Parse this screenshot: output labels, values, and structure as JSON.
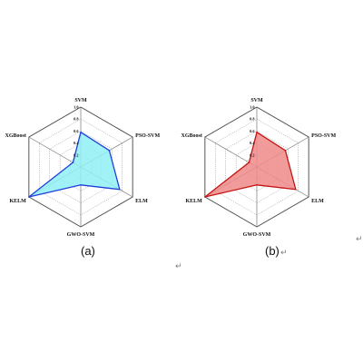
{
  "chart_data": [
    {
      "type": "radar",
      "caption": "(a)",
      "axes": [
        "SVM",
        "PSO-SVM",
        "ELM",
        "GWO-SVM",
        "KELM",
        "XGBoost"
      ],
      "ticks": [
        "0.2",
        "0.4",
        "0.6",
        "0.8",
        "1.0"
      ],
      "rlim": [
        0,
        1
      ],
      "values": [
        0.58,
        0.55,
        0.75,
        0.3,
        1.0,
        0.15
      ],
      "fill_color": "#8ff0f4",
      "line_color": "#1f3fdc"
    },
    {
      "type": "radar",
      "caption": "(b)",
      "axes": [
        "SVM",
        "PSO-SVM",
        "ELM",
        "GWO-SVM",
        "KELM",
        "XGBoost"
      ],
      "ticks": [
        "0.2",
        "0.4",
        "0.6",
        "0.8",
        "1.0"
      ],
      "rlim": [
        0,
        1
      ],
      "values": [
        0.58,
        0.55,
        0.75,
        0.3,
        1.0,
        0.15
      ],
      "fill_color": "#f08a8a",
      "line_color": "#c41414"
    }
  ],
  "marks": [
    "↵",
    "↵",
    "↵"
  ]
}
